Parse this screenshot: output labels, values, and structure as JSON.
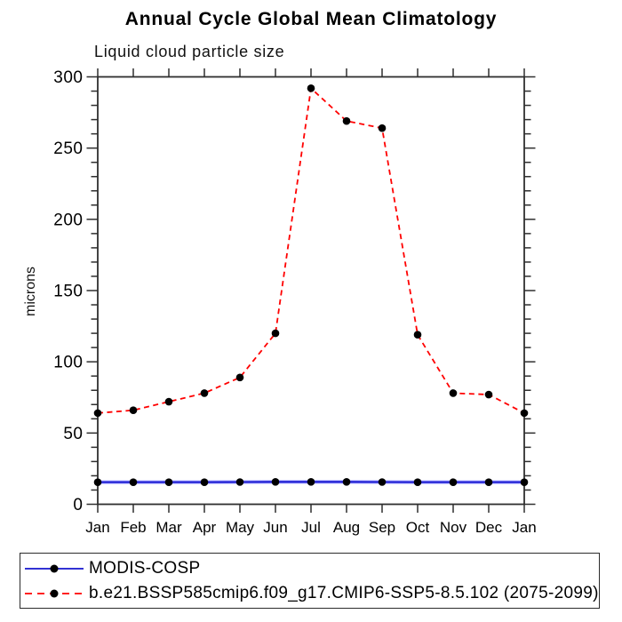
{
  "chart_data": {
    "type": "line",
    "title": "Annual Cycle Global Mean Climatology",
    "subtitle": "Liquid cloud particle size",
    "ylabel": "microns",
    "xlabel": "",
    "categories": [
      "Jan",
      "Feb",
      "Mar",
      "Apr",
      "May",
      "Jun",
      "Jul",
      "Aug",
      "Sep",
      "Oct",
      "Nov",
      "Dec",
      "Jan"
    ],
    "ylim": [
      0,
      300
    ],
    "ytick_step": 50,
    "yminor_step": 10,
    "grid": false,
    "legend_position": "bottom-left-box",
    "axis_color": "#2f2f2f",
    "series": [
      {
        "name": "MODIS-COSP",
        "line_color": "#1414cd",
        "underlay_color": "#9a9aff",
        "line_style": "solid",
        "marker": "circle",
        "marker_color": "#000000",
        "values": [
          15.5,
          15.5,
          15.5,
          15.5,
          15.6,
          15.7,
          15.7,
          15.7,
          15.6,
          15.5,
          15.5,
          15.5,
          15.5
        ]
      },
      {
        "name": "b.e21.BSSP585cmip6.f09_g17.CMIP6-SSP5-8.5.102 (2075-2099)",
        "line_color": "#ff0000",
        "line_style": "dashed",
        "marker": "circle",
        "marker_color": "#000000",
        "values": [
          64,
          66,
          72,
          78,
          89,
          120,
          292,
          269,
          264,
          119,
          78,
          77,
          64
        ]
      }
    ]
  }
}
